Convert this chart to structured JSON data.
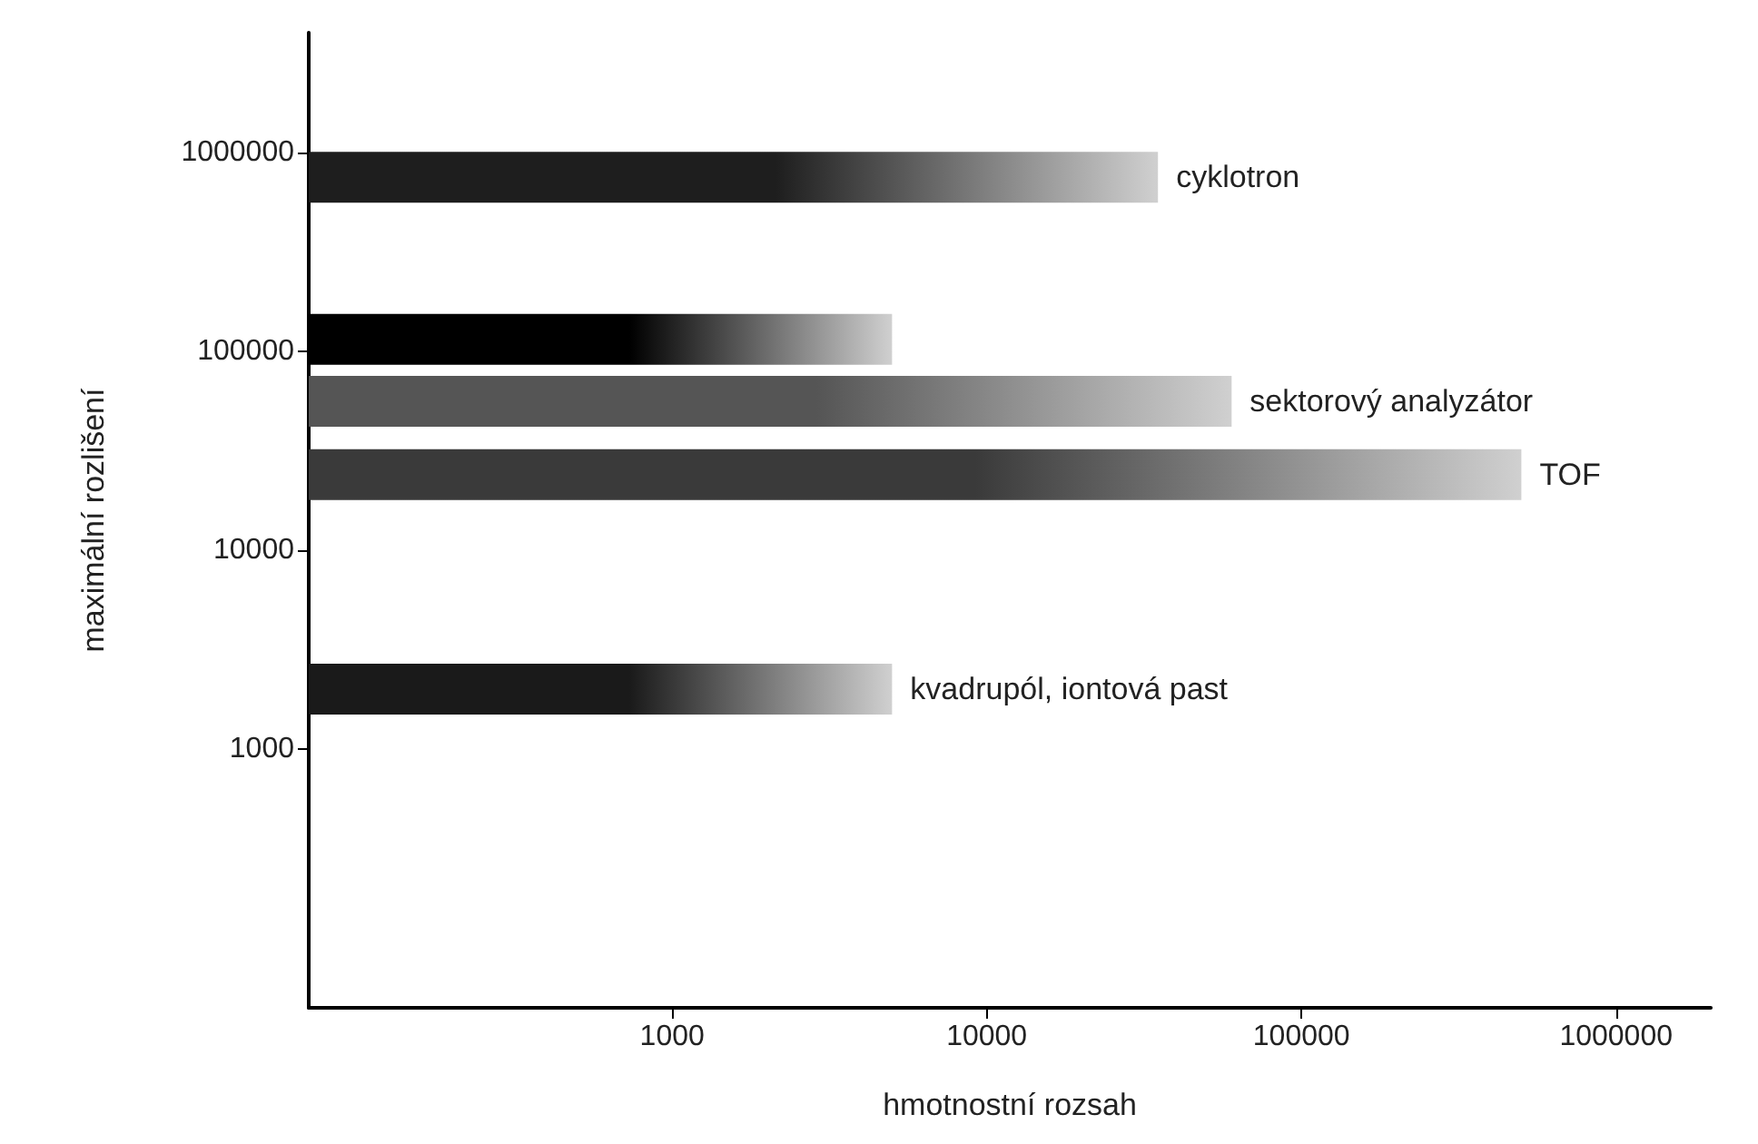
{
  "chart_data": {
    "type": "bar",
    "orientation": "horizontal",
    "xlabel": "hmotnostní rozsah",
    "ylabel": "maximální rozlišení",
    "log": "xy",
    "xlim": [
      70,
      2000000
    ],
    "ylim": [
      50,
      4000000
    ],
    "xticks": [
      1000,
      10000,
      100000,
      1000000
    ],
    "yticks": [
      1000,
      10000,
      100000,
      1000000
    ],
    "grid": false,
    "legend": false,
    "series": [
      {
        "name": "cyklotron",
        "color": "#1e1e1e",
        "x": [
          750000
        ],
        "values": [
          35000
        ]
      },
      {
        "name": null,
        "color": "#000000",
        "x": [
          115000
        ],
        "values": [
          5000
        ]
      },
      {
        "name": "sektorový analyzátor",
        "color": "#555555",
        "x": [
          56000
        ],
        "values": [
          60000
        ]
      },
      {
        "name": "TOF",
        "color": "#3a3a3a",
        "x": [
          24000
        ],
        "values": [
          500000
        ]
      },
      {
        "name": "kvadrupól, iontová past",
        "color": "#1a1a1a",
        "x": [
          2000
        ],
        "values": [
          5000
        ]
      }
    ]
  }
}
